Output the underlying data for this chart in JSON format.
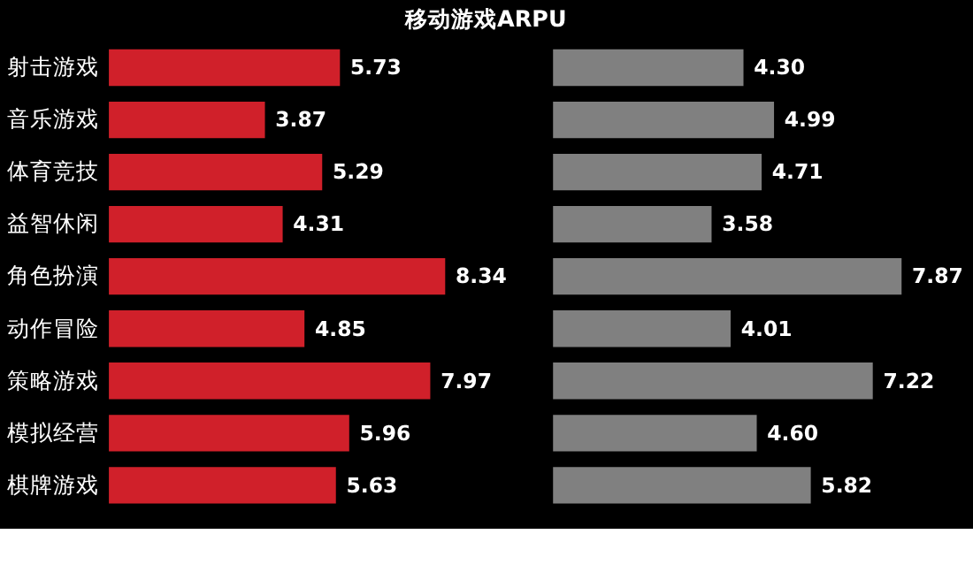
{
  "chart_data": [
    {
      "type": "bar",
      "orientation": "horizontal",
      "title": "移动游戏ARPU",
      "categories": [
        "射击游戏",
        "音乐游戏",
        "体育竞技",
        "益智休闲",
        "角色扮演",
        "动作冒险",
        "策略游戏",
        "模拟经营",
        "棋牌游戏"
      ],
      "color": "#d0202a",
      "values": [
        5.73,
        3.87,
        5.29,
        4.31,
        8.34,
        4.85,
        7.97,
        5.96,
        5.63
      ],
      "value_labels": [
        "5.73",
        "3.87",
        "5.29",
        "4.31",
        "8.34",
        "4.85",
        "7.97",
        "5.96",
        "5.63"
      ]
    },
    {
      "type": "bar",
      "orientation": "horizontal",
      "categories": [
        null,
        null,
        null,
        null,
        null,
        null,
        null,
        null,
        null
      ],
      "color": "#808080",
      "values": [
        4.3,
        4.99,
        4.71,
        3.58,
        7.87,
        4.01,
        7.22,
        4.6,
        5.82
      ],
      "value_labels": [
        "4.30",
        "4.99",
        "4.71",
        "3.58",
        "7.87",
        "4.01",
        "7.22",
        "4.60",
        "5.82"
      ]
    }
  ]
}
